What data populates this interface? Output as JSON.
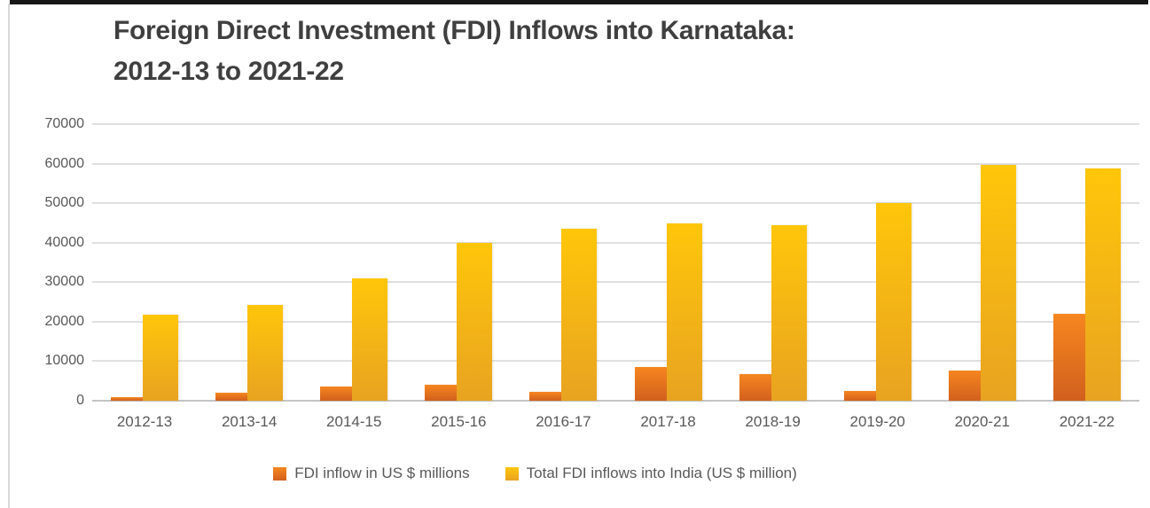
{
  "title": {
    "line1": "Foreign Direct Investment (FDI) Inflows into Karnataka:",
    "line2": "2012-13 to 2021-22"
  },
  "chart_data": {
    "type": "bar",
    "title": "Foreign Direct Investment (FDI) Inflows into Karnataka: 2012-13 to 2021-22",
    "categories": [
      "2012-13",
      "2013-14",
      "2014-15",
      "2015-16",
      "2016-17",
      "2017-18",
      "2018-19",
      "2019-20",
      "2020-21",
      "2021-22"
    ],
    "series": [
      {
        "key": "karnataka",
        "name": "FDI inflow in US $ millions",
        "color_top": "#f6861f",
        "color_bottom": "#d2601e",
        "values": [
          1000,
          2000,
          3500,
          4100,
          2200,
          8500,
          6700,
          2400,
          7700,
          22000
        ]
      },
      {
        "key": "india",
        "name": "Total FDI inflows into India (US $ million)",
        "color_top": "#ffc60a",
        "color_bottom": "#e8a321",
        "values": [
          21800,
          24300,
          31000,
          40000,
          43500,
          44900,
          44400,
          50000,
          59600,
          58800
        ]
      }
    ],
    "xlabel": "",
    "ylabel": "",
    "ylim": [
      0,
      70000
    ],
    "ytick_interval": 10000,
    "yticks": [
      0,
      10000,
      20000,
      30000,
      40000,
      50000,
      60000,
      70000
    ],
    "grid": true,
    "legend_position": "bottom"
  },
  "colors": {
    "title_text": "#3f3f3f",
    "axis_text": "#595959",
    "gridline": "#e0e0e0",
    "axis_line": "#c4c4c4",
    "top_strip": "#161616",
    "left_border": "#d9d9d9",
    "background": "#ffffff"
  }
}
